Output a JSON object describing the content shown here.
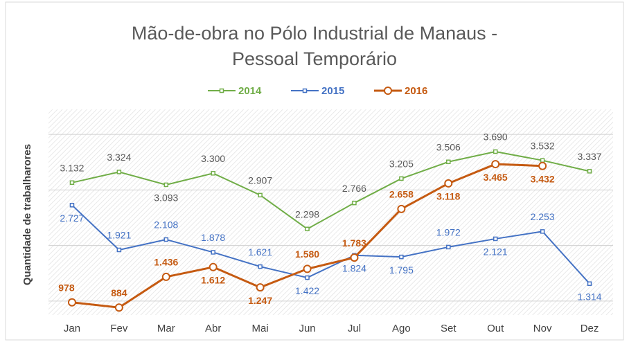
{
  "chart_data": {
    "type": "line",
    "title": "Mão-de-obra no Pólo Industrial de Manaus - Pessoal Temporário",
    "y_label": "Quantidade de trabalharores",
    "categories": [
      "Jan",
      "Fev",
      "Mar",
      "Abr",
      "Mai",
      "Jun",
      "Jul",
      "Ago",
      "Set",
      "Out",
      "Nov",
      "Dez"
    ],
    "series": [
      {
        "name": "2014",
        "color": "#70ad47",
        "marker": "square",
        "values": [
          3132,
          3324,
          3093,
          3300,
          2907,
          2298,
          2766,
          3205,
          3506,
          3690,
          3532,
          3337
        ],
        "value_labels": [
          "3.132",
          "3.324",
          "3.093",
          "3.300",
          "2.907",
          "2.298",
          "2.766",
          "3.205",
          "3.506",
          "3.690",
          "3.532",
          "3.337"
        ]
      },
      {
        "name": "2015",
        "color": "#4472c4",
        "marker": "square",
        "values": [
          2727,
          1921,
          2108,
          1878,
          1621,
          1422,
          1824,
          1795,
          1972,
          2121,
          2253,
          1314
        ],
        "value_labels": [
          "2.727",
          "1.921",
          "2.108",
          "1.878",
          "1.621",
          "1.422",
          "1.824",
          "1.795",
          "1.972",
          "2.121",
          "2.253",
          "1.314"
        ]
      },
      {
        "name": "2016",
        "color": "#c55a11",
        "marker": "circle",
        "values": [
          978,
          884,
          1436,
          1612,
          1247,
          1580,
          1783,
          2658,
          3118,
          3465,
          3432,
          null
        ],
        "value_labels": [
          "978",
          "884",
          "1.436",
          "1.612",
          "1.247",
          "1.580",
          "1.783",
          "2.658",
          "3.118",
          "3.465",
          "3.432",
          null
        ]
      }
    ],
    "ylim": [
      750,
      4450
    ],
    "yticks": [
      1000,
      2000,
      3000,
      4000
    ],
    "grid": true,
    "legend": "top"
  }
}
